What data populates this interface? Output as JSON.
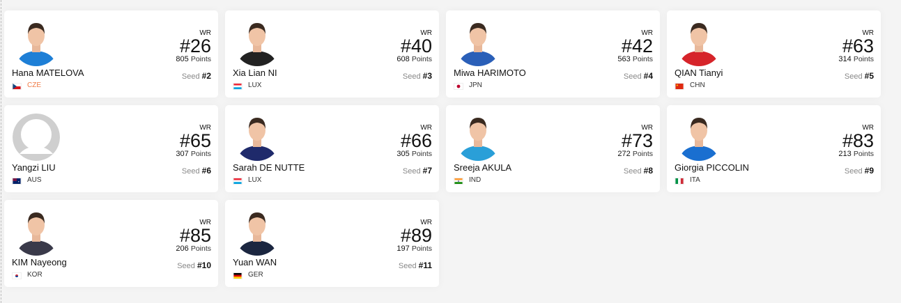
{
  "labels": {
    "wr": "WR",
    "points": "Points",
    "seed": "Seed"
  },
  "players": [
    {
      "name": "Hana MATELOVA",
      "country": "CZE",
      "rank": "#26",
      "points": "805",
      "seed": "#2",
      "jersey": "#1e7fd6",
      "highlight": true
    },
    {
      "name": "Xia Lian NI",
      "country": "LUX",
      "rank": "#40",
      "points": "608",
      "seed": "#3",
      "jersey": "#222"
    },
    {
      "name": "Miwa HARIMOTO",
      "country": "JPN",
      "rank": "#42",
      "points": "563",
      "seed": "#4",
      "jersey": "#2a5fb8"
    },
    {
      "name": "QIAN Tianyi",
      "country": "CHN",
      "rank": "#63",
      "points": "314",
      "seed": "#5",
      "jersey": "#d6242a"
    },
    {
      "name": "Yangzi LIU",
      "country": "AUS",
      "rank": "#65",
      "points": "307",
      "seed": "#6",
      "placeholder": true
    },
    {
      "name": "Sarah DE NUTTE",
      "country": "LUX",
      "rank": "#66",
      "points": "305",
      "seed": "#7",
      "jersey": "#1f2a6b"
    },
    {
      "name": "Sreeja AKULA",
      "country": "IND",
      "rank": "#73",
      "points": "272",
      "seed": "#8",
      "jersey": "#2a9fd8"
    },
    {
      "name": "Giorgia PICCOLIN",
      "country": "ITA",
      "rank": "#83",
      "points": "213",
      "seed": "#9",
      "jersey": "#1a6fd0"
    },
    {
      "name": "KIM Nayeong",
      "country": "KOR",
      "rank": "#85",
      "points": "206",
      "seed": "#10",
      "jersey": "#3a3a4a"
    },
    {
      "name": "Yuan WAN",
      "country": "GER",
      "rank": "#89",
      "points": "197",
      "seed": "#11",
      "jersey": "#1b2640"
    }
  ]
}
